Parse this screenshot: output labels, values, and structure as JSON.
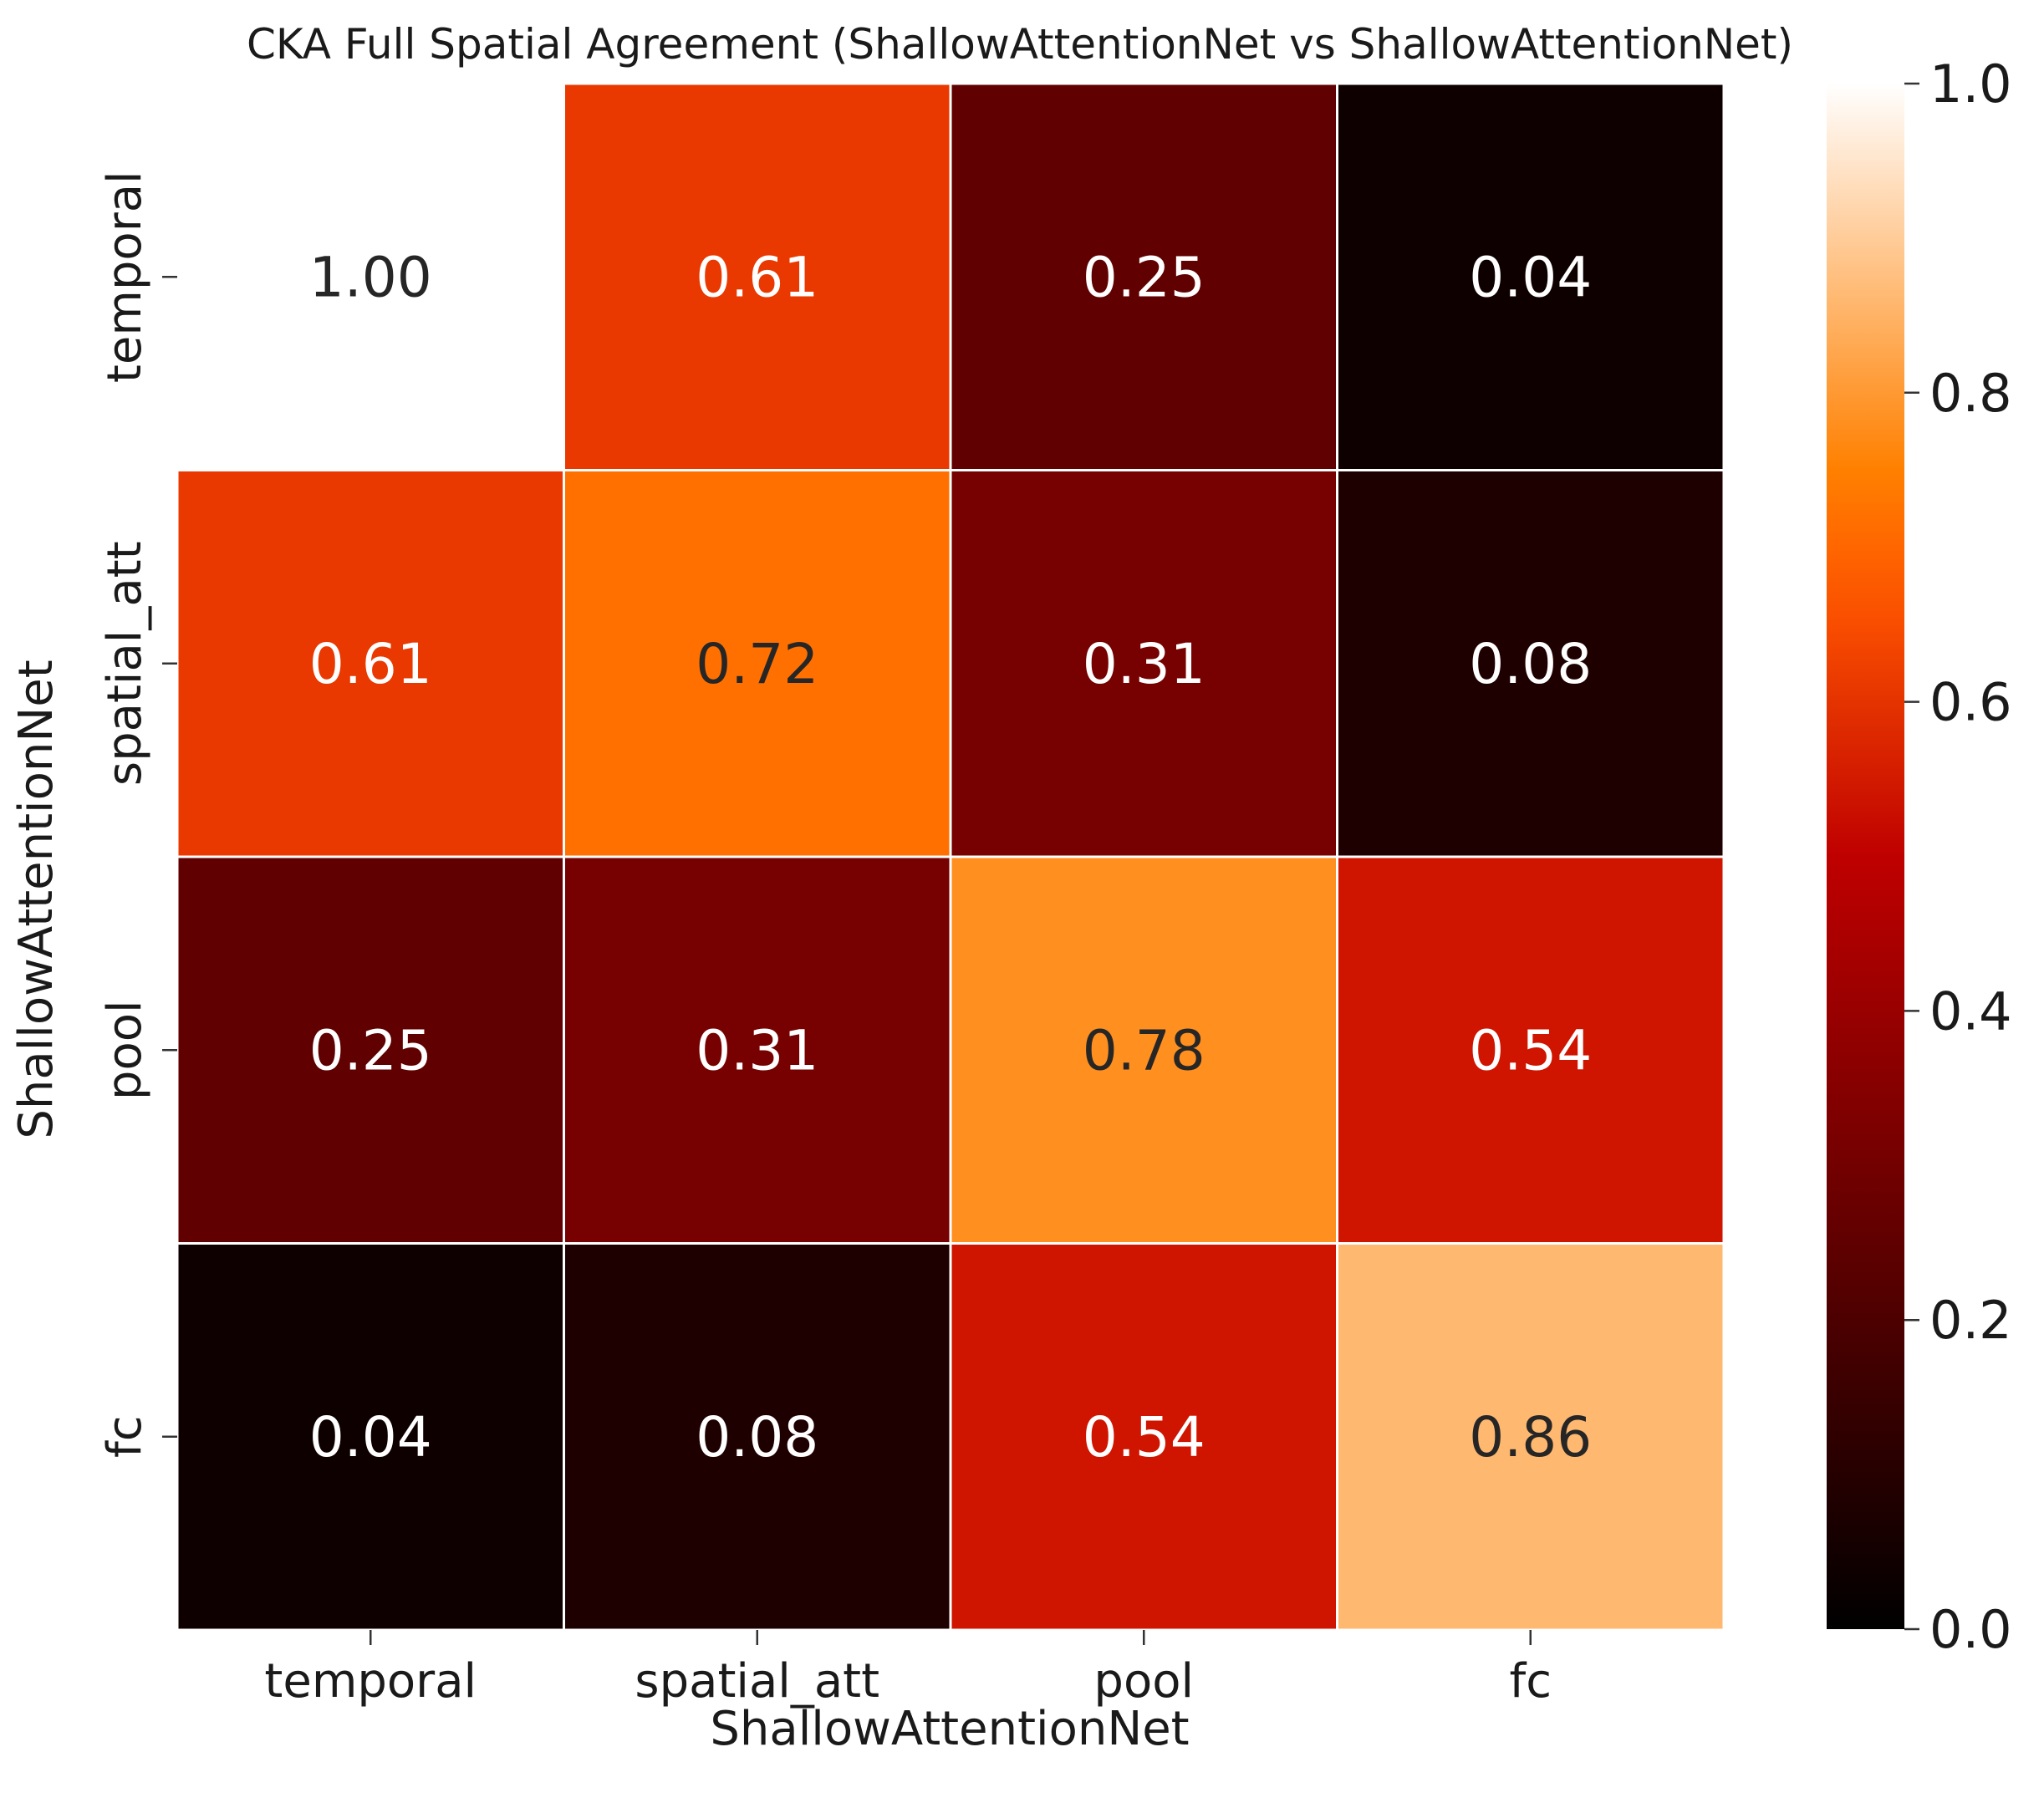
{
  "chart_data": {
    "type": "heatmap",
    "title": "CKA Full Spatial Agreement (ShallowAttentionNet vs ShallowAttentionNet)",
    "xlabel": "ShallowAttentionNet",
    "ylabel": "ShallowAttentionNet",
    "x_categories": [
      "temporal",
      "spatial_att",
      "pool",
      "fc"
    ],
    "y_categories": [
      "temporal",
      "spatial_att",
      "pool",
      "fc"
    ],
    "values": [
      [
        1.0,
        0.61,
        0.25,
        0.04
      ],
      [
        0.61,
        0.72,
        0.31,
        0.08
      ],
      [
        0.25,
        0.31,
        0.78,
        0.54
      ],
      [
        0.04,
        0.08,
        0.54,
        0.86
      ]
    ],
    "cell_labels": [
      [
        "1.00",
        "0.61",
        "0.25",
        "0.04"
      ],
      [
        "0.61",
        "0.72",
        "0.31",
        "0.08"
      ],
      [
        "0.25",
        "0.31",
        "0.78",
        "0.54"
      ],
      [
        "0.04",
        "0.08",
        "0.54",
        "0.86"
      ]
    ],
    "colormap": "gist_heat",
    "colorbar": {
      "range": [
        0.0,
        1.0
      ],
      "ticks": [
        0.0,
        0.2,
        0.4,
        0.6,
        0.8,
        1.0
      ],
      "tick_labels": [
        "0.0",
        "0.2",
        "0.4",
        "0.6",
        "0.8",
        "1.0"
      ]
    },
    "grid_line_color": "#ffffff",
    "annotation_colors": {
      "dark": "#262626",
      "light": "#ffffff"
    }
  }
}
